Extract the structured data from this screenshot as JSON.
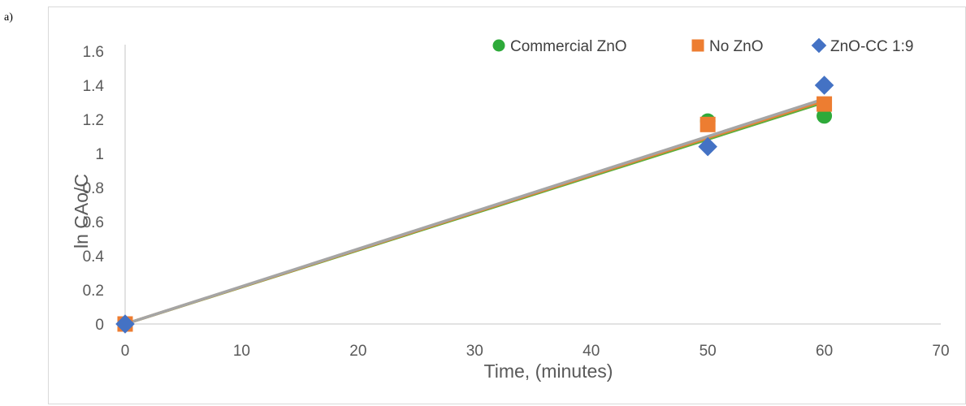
{
  "figure": {
    "panel_label": "a)"
  },
  "chart_data": {
    "type": "scatter",
    "title": "",
    "xlabel": "Time, (minutes)",
    "ylabel": "ln CAo/C",
    "xlim": [
      0,
      70
    ],
    "ylim": [
      0,
      1.6
    ],
    "x_ticks": [
      0,
      10,
      20,
      30,
      40,
      50,
      60,
      70
    ],
    "y_ticks": [
      "0",
      "0.2",
      "0.4",
      "0.6",
      "0.8",
      "1",
      "1.2",
      "1.4",
      "1.6"
    ],
    "grid": false,
    "legend_position": "top-right",
    "series": [
      {
        "name": "Commercial ZnO",
        "marker": "circle",
        "color": "#2eaa3a",
        "points": [
          [
            0,
            0
          ],
          [
            50,
            1.19
          ],
          [
            60,
            1.22
          ]
        ],
        "trendline": {
          "from": [
            0,
            0
          ],
          "to": [
            60,
            1.3
          ],
          "color": "#5fae3c"
        }
      },
      {
        "name": "No ZnO",
        "marker": "square",
        "color": "#ed7d31",
        "points": [
          [
            0,
            0
          ],
          [
            50,
            1.17
          ],
          [
            60,
            1.29
          ]
        ],
        "trendline": {
          "from": [
            0,
            0
          ],
          "to": [
            60,
            1.31
          ],
          "color": "#e6823a"
        }
      },
      {
        "name": "ZnO-CC 1:9",
        "marker": "diamond",
        "color": "#4472c4",
        "points": [
          [
            0,
            0
          ],
          [
            50,
            1.04
          ],
          [
            60,
            1.4
          ]
        ],
        "trendline": {
          "from": [
            0,
            0
          ],
          "to": [
            60,
            1.32
          ],
          "color": "#a5a5a5"
        }
      }
    ]
  }
}
